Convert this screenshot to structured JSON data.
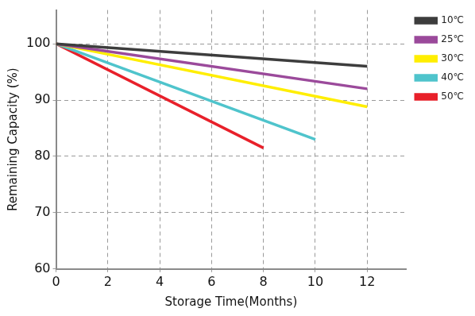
{
  "chart_data": {
    "type": "line",
    "x_label": "Storage Time(Months)",
    "y_label": "Remaining Capacity (%)",
    "xlim": [
      0,
      13.5
    ],
    "xticks": [
      0,
      2,
      4,
      6,
      8,
      10,
      12
    ],
    "ylim": [
      60,
      106
    ],
    "yticks": [
      60,
      70,
      80,
      90,
      100
    ],
    "grid": true,
    "legend": "right",
    "series": [
      {
        "name": "10℃",
        "color": "#3d3d3d",
        "x": [
          0,
          12
        ],
        "values": [
          100,
          96
        ]
      },
      {
        "name": "25℃",
        "color": "#9b4a9b",
        "x": [
          0,
          12
        ],
        "values": [
          100,
          92
        ]
      },
      {
        "name": "30℃",
        "color": "#ffee00",
        "x": [
          0,
          12
        ],
        "values": [
          100,
          88.8
        ]
      },
      {
        "name": "40℃",
        "color": "#4fc4cc",
        "x": [
          0,
          10
        ],
        "values": [
          100,
          83
        ]
      },
      {
        "name": "50℃",
        "color": "#e8202a",
        "x": [
          0,
          8
        ],
        "values": [
          100,
          81.5
        ]
      }
    ]
  }
}
